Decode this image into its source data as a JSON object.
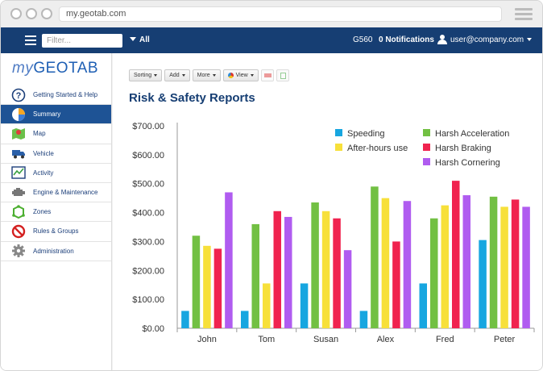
{
  "browser": {
    "url": "my.geotab.com"
  },
  "topbar": {
    "filter_placeholder": "Filter...",
    "group_label": "All",
    "device_label": "G560",
    "notifications_label": "0 Notifications",
    "user_label": "user@company.com"
  },
  "logo": {
    "my": "my",
    "geotab": "GEOTAB"
  },
  "sidebar": {
    "items": [
      {
        "label": "Getting Started & Help",
        "icon": "help-icon"
      },
      {
        "label": "Summary",
        "icon": "pie-chart-icon",
        "active": true
      },
      {
        "label": "Map",
        "icon": "map-icon"
      },
      {
        "label": "Vehicle",
        "icon": "truck-icon"
      },
      {
        "label": "Activity",
        "icon": "activity-chart-icon"
      },
      {
        "label": "Engine & Maintenance",
        "icon": "engine-icon"
      },
      {
        "label": "Zones",
        "icon": "zones-icon"
      },
      {
        "label": "Rules & Groups",
        "icon": "prohibited-icon"
      },
      {
        "label": "Administration",
        "icon": "gear-icon"
      }
    ]
  },
  "toolbar": {
    "sorting_label": "Sorting",
    "add_label": "Add",
    "more_label": "More",
    "view_label": "View"
  },
  "page": {
    "title": "Risk & Safety Reports"
  },
  "colors": {
    "topbar": "#163e73",
    "active_nav": "#1e5395",
    "speeding": "#17a6e0",
    "harsh_acceleration": "#72c043",
    "after_hours": "#f7e03a",
    "harsh_braking": "#f0234f",
    "harsh_cornering": "#b05cf0"
  },
  "chart_data": {
    "type": "bar",
    "categories": [
      "John",
      "Tom",
      "Susan",
      "Alex",
      "Fred",
      "Peter"
    ],
    "ylim": [
      0,
      700
    ],
    "yticks": [
      "$0.00",
      "$100.00",
      "$200.00",
      "$300.00",
      "$400.00",
      "$500.00",
      "$600.00",
      "$700.00"
    ],
    "legend_position": "top-right",
    "series": [
      {
        "name": "Speeding",
        "color": "#17a6e0",
        "values": [
          60,
          60,
          155,
          60,
          155,
          305
        ]
      },
      {
        "name": "Harsh Acceleration",
        "color": "#72c043",
        "values": [
          320,
          360,
          435,
          490,
          380,
          455
        ]
      },
      {
        "name": "After-hours use",
        "color": "#f7e03a",
        "values": [
          285,
          155,
          405,
          450,
          425,
          420
        ]
      },
      {
        "name": "Harsh Braking",
        "color": "#f0234f",
        "values": [
          275,
          405,
          380,
          300,
          510,
          445
        ]
      },
      {
        "name": "Harsh Cornering",
        "color": "#b05cf0",
        "values": [
          470,
          385,
          270,
          440,
          460,
          420
        ]
      }
    ]
  }
}
